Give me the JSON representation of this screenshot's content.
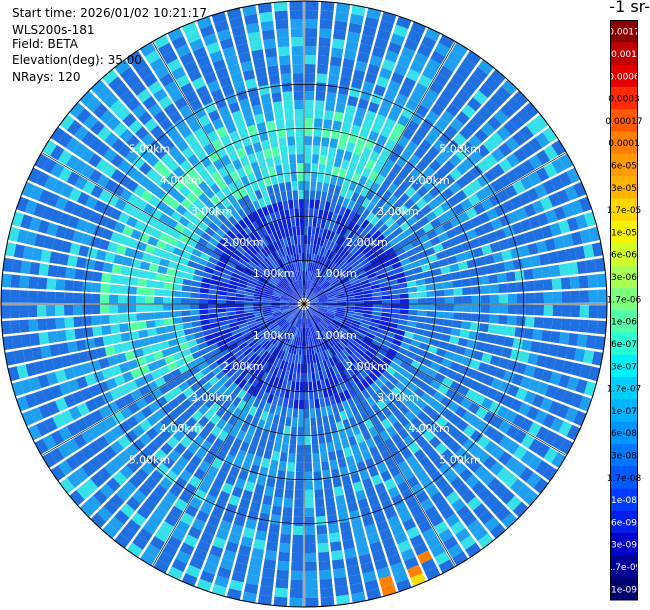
{
  "info": {
    "start_time": "Start time: 2026/01/02 10:21:17",
    "instrument": "WLS200s-181",
    "field": "Field: BETA",
    "elevation": "Elevation(deg): 35.00",
    "nrays": "NRays: 120"
  },
  "colorbar": {
    "title": "-1 sr-",
    "labels": [
      "0.0017",
      "0.001",
      "0.0006",
      "0.0003",
      "0.00017",
      "0.0001",
      "6e-05",
      "3e-05",
      "1.7e-05",
      "1e-05",
      "6e-06",
      "3e-06",
      "1.7e-06",
      "1e-06",
      "6e-07",
      "3e-07",
      "1.7e-07",
      "1e-07",
      "6e-08",
      "3e-08",
      "1.7e-08",
      "1e-08",
      "6e-09",
      "3e-09",
      "1.7e-09",
      "1e-09"
    ],
    "colors": [
      "#8b0000",
      "#bf0000",
      "#e60000",
      "#ff2a00",
      "#ff5a00",
      "#ff7f00",
      "#ff9a00",
      "#ffb200",
      "#ffd700",
      "#f4f400",
      "#d2ff2a",
      "#aaff55",
      "#7dff7d",
      "#55ffaa",
      "#2affd4",
      "#00f0ff",
      "#00d0ff",
      "#00b4ff",
      "#0096ff",
      "#0078ff",
      "#005aff",
      "#003cff",
      "#001ee6",
      "#0000c8",
      "#000096",
      "#00006e"
    ]
  },
  "chart_data": {
    "type": "ppi",
    "field": "BETA",
    "elevation_deg": 35.0,
    "nrays": 120,
    "range_rings_km": [
      1,
      2,
      3,
      4,
      5
    ],
    "ring_labels": [
      "1.00km",
      "2.00km",
      "3.00km",
      "4.00km",
      "5.00km"
    ],
    "max_range_km": 6.9,
    "grid": true,
    "colors": {
      "low": "#1f6fe0",
      "mid": "#1e9ff0",
      "high": "#35e0e8",
      "hot": "#f0e000",
      "hotter": "#ff8000",
      "center": "#0a22d8"
    }
  }
}
